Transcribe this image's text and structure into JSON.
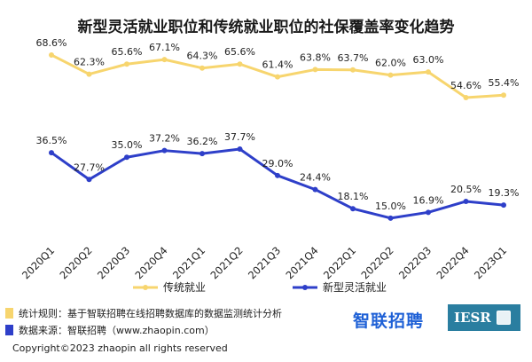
{
  "title": "新型灵活就业职位和传统就业职位的社保覆盖率变化趋势",
  "chart_data": {
    "type": "line",
    "title": "新型灵活就业职位和传统就业职位的社保覆盖率变化趋势",
    "categories": [
      "2020Q1",
      "2020Q2",
      "2020Q3",
      "2020Q4",
      "2021Q1",
      "2021Q2",
      "2021Q3",
      "2021Q4",
      "2022Q1",
      "2022Q2",
      "2022Q3",
      "2022Q4",
      "2023Q1"
    ],
    "series": [
      {
        "name": "传统就业",
        "color": "#f7d56e",
        "values": [
          68.6,
          62.3,
          65.6,
          67.1,
          64.3,
          65.6,
          61.4,
          63.8,
          63.7,
          62.0,
          63.0,
          54.6,
          55.4
        ],
        "labels": [
          "68.6%",
          "62.3%",
          "65.6%",
          "67.1%",
          "64.3%",
          "65.6%",
          "61.4%",
          "63.8%",
          "63.7%",
          "62.0%",
          "63.0%",
          "54.6%",
          "55.4%"
        ]
      },
      {
        "name": "新型灵活就业",
        "color": "#2e3fc9",
        "values": [
          36.5,
          27.7,
          35.0,
          37.2,
          36.2,
          37.7,
          29.0,
          24.4,
          18.1,
          15.0,
          16.9,
          20.5,
          19.3
        ],
        "labels": [
          "36.5%",
          "27.7%",
          "35.0%",
          "37.2%",
          "36.2%",
          "37.7%",
          "29.0%",
          "24.4%",
          "18.1%",
          "15.0%",
          "16.9%",
          "20.5%",
          "19.3%"
        ]
      }
    ],
    "ylim": [
      10,
      75
    ],
    "grid": false,
    "legend_position": "bottom"
  },
  "notes": [
    {
      "color": "#f7d56e",
      "text": "统计规则：基于智联招聘在线招聘数据库的数据监测统计分析"
    },
    {
      "color": "#2e3fc9",
      "text": "数据来源：智联招聘（www.zhaopin.com）"
    }
  ],
  "logos": {
    "zhaopin": "智联招聘",
    "iesr": "IESR"
  },
  "copyright": "Copyright©2023 zhaopin all rights reserved"
}
